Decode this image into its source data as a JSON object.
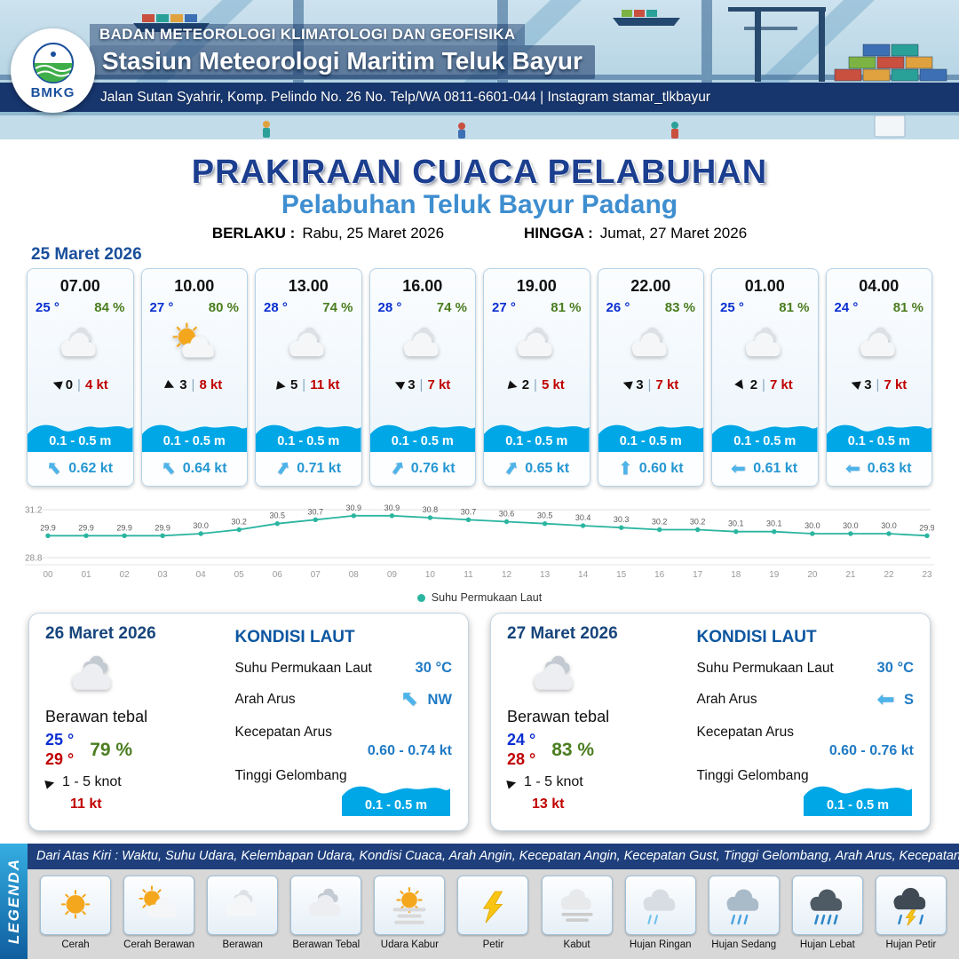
{
  "header": {
    "logo_text": "BMKG",
    "agency": "BADAN METEOROLOGI KLIMATOLOGI DAN GEOFISIKA",
    "station": "Stasiun Meteorologi Maritim Teluk Bayur",
    "address": "Jalan Sutan Syahrir, Komp. Pelindo No. 26 No. Telp/WA 0811-6601-044 | Instagram stamar_tlkbayur"
  },
  "title": {
    "main": "PRAKIRAAN CUACA PELABUHAN",
    "subtitle": "Pelabuhan Teluk Bayur Padang",
    "valid_label": "BERLAKU :",
    "valid_value": "Rabu, 25 Maret 2026",
    "until_label": "HINGGA :",
    "until_value": "Jumat, 27 Maret 2026"
  },
  "glyphs": {
    "wind_arrow": "▶",
    "current_arrow": "⬆",
    "separator": "|"
  },
  "colors": {
    "navy": "#17366e",
    "title_blue": "#1b3e8f",
    "subtitle_blue": "#3e8ed0",
    "temp_blue": "#0a2fd0",
    "humidity_green": "#4a7d1f",
    "gust_red": "#c00000",
    "wave_blue": "#00a7e6",
    "current_blue": "#2597d2",
    "chart_teal": "#2bb5a0"
  },
  "forecast": {
    "date": "25 Maret 2026",
    "cards": [
      {
        "time": "07.00",
        "temp": "25 °",
        "rh": "84 %",
        "icon": "berawan",
        "wind_deg": 200,
        "wind": "0",
        "gust": "4 kt",
        "wave": "0.1 - 0.5 m",
        "cur_deg": -40,
        "cur": "0.62 kt"
      },
      {
        "time": "10.00",
        "temp": "27 °",
        "rh": "80 %",
        "icon": "cerah-berawan",
        "wind_deg": 25,
        "wind": "3",
        "gust": "8 kt",
        "wave": "0.1 - 0.5 m",
        "cur_deg": -40,
        "cur": "0.64 kt"
      },
      {
        "time": "13.00",
        "temp": "28 °",
        "rh": "74 %",
        "icon": "berawan",
        "wind_deg": 10,
        "wind": "5",
        "gust": "11 kt",
        "wave": "0.1 - 0.5 m",
        "cur_deg": 35,
        "cur": "0.71 kt"
      },
      {
        "time": "16.00",
        "temp": "28 °",
        "rh": "74 %",
        "icon": "berawan",
        "wind_deg": 205,
        "wind": "3",
        "gust": "7 kt",
        "wave": "0.1 - 0.5 m",
        "cur_deg": 35,
        "cur": "0.76 kt"
      },
      {
        "time": "19.00",
        "temp": "27 °",
        "rh": "81 %",
        "icon": "berawan",
        "wind_deg": 15,
        "wind": "2",
        "gust": "5 kt",
        "wave": "0.1 - 0.5 m",
        "cur_deg": 35,
        "cur": "0.65 kt"
      },
      {
        "time": "22.00",
        "temp": "26 °",
        "rh": "83 %",
        "icon": "berawan",
        "wind_deg": 200,
        "wind": "3",
        "gust": "7 kt",
        "wave": "0.1 - 0.5 m",
        "cur_deg": 0,
        "cur": "0.60 kt"
      },
      {
        "time": "01.00",
        "temp": "25 °",
        "rh": "81 %",
        "icon": "berawan",
        "wind_deg": 55,
        "wind": "2",
        "gust": "7 kt",
        "wave": "0.1 - 0.5 m",
        "cur_deg": -90,
        "cur": "0.61 kt"
      },
      {
        "time": "04.00",
        "temp": "24 °",
        "rh": "81 %",
        "icon": "berawan",
        "wind_deg": 200,
        "wind": "3",
        "gust": "7 kt",
        "wave": "0.1 - 0.5 m",
        "cur_deg": -90,
        "cur": "0.63 kt"
      }
    ]
  },
  "chart_data": {
    "type": "line",
    "title": "Suhu Permukaan Laut",
    "x": [
      "00",
      "01",
      "02",
      "03",
      "04",
      "05",
      "06",
      "07",
      "08",
      "09",
      "10",
      "11",
      "12",
      "13",
      "14",
      "15",
      "16",
      "17",
      "18",
      "19",
      "20",
      "21",
      "22",
      "23"
    ],
    "series": [
      {
        "name": "Suhu Permukaan Laut",
        "values": [
          29.9,
          29.9,
          29.9,
          29.9,
          30.0,
          30.2,
          30.5,
          30.7,
          30.9,
          30.9,
          30.8,
          30.7,
          30.6,
          30.5,
          30.4,
          30.3,
          30.2,
          30.2,
          30.1,
          30.1,
          30.0,
          30.0,
          30.0,
          29.9
        ]
      }
    ],
    "xlabel": "",
    "ylabel": "",
    "ylim": [
      28.8,
      31.2
    ],
    "yticks": [
      28.8,
      31.2
    ],
    "line_color": "#2bb5a0",
    "grid": "horizontal",
    "legend_position": "bottom"
  },
  "days": [
    {
      "date": "26 Maret 2026",
      "icon": "berawan-tebal",
      "cond": "Berawan tebal",
      "tmin": "25 °",
      "tmax": "29 °",
      "rh": "79 %",
      "wind_deg": -15,
      "wind": "1 - 5 knot",
      "gust": "11 kt",
      "sea": {
        "title": "KONDISI LAUT",
        "sst_label": "Suhu Permukaan Laut",
        "sst": "30 °C",
        "dir_label": "Arah Arus",
        "dir": "NW",
        "dir_deg": -45,
        "spd_label": "Kecepatan Arus",
        "spd": "0.60 - 0.74 kt",
        "wave_label": "Tinggi Gelombang",
        "wave": "0.1 - 0.5 m"
      }
    },
    {
      "date": "27 Maret 2026",
      "icon": "berawan-tebal",
      "cond": "Berawan tebal",
      "tmin": "24 °",
      "tmax": "28 °",
      "rh": "83 %",
      "wind_deg": -15,
      "wind": "1 - 5 knot",
      "gust": "13 kt",
      "sea": {
        "title": "KONDISI LAUT",
        "sst_label": "Suhu Permukaan Laut",
        "sst": "30 °C",
        "dir_label": "Arah Arus",
        "dir": "S",
        "dir_deg": -90,
        "spd_label": "Kecepatan Arus",
        "spd": "0.60 - 0.76 kt",
        "wave_label": "Tinggi Gelombang",
        "wave": "0.1 - 0.5 m"
      }
    }
  ],
  "legend": {
    "strip": "LEGENDA",
    "note": "Dari Atas Kiri : Waktu, Suhu Udara, Kelembapan Udara, Kondisi Cuaca, Arah Angin, Kecepatan Angin, Kecepatan Gust, Tinggi Gelombang, Arah Arus, Kecepatan Arus",
    "items": [
      {
        "label": "Cerah",
        "icon": "cerah"
      },
      {
        "label": "Cerah Berawan",
        "icon": "cerah-berawan"
      },
      {
        "label": "Berawan",
        "icon": "berawan"
      },
      {
        "label": "Berawan Tebal",
        "icon": "berawan-tebal"
      },
      {
        "label": "Udara Kabur",
        "icon": "udara-kabur"
      },
      {
        "label": "Petir",
        "icon": "petir"
      },
      {
        "label": "Kabut",
        "icon": "kabut"
      },
      {
        "label": "Hujan Ringan",
        "icon": "hujan-ringan"
      },
      {
        "label": "Hujan Sedang",
        "icon": "hujan-sedang"
      },
      {
        "label": "Hujan Lebat",
        "icon": "hujan-lebat"
      },
      {
        "label": "Hujan Petir",
        "icon": "hujan-petir"
      }
    ]
  }
}
